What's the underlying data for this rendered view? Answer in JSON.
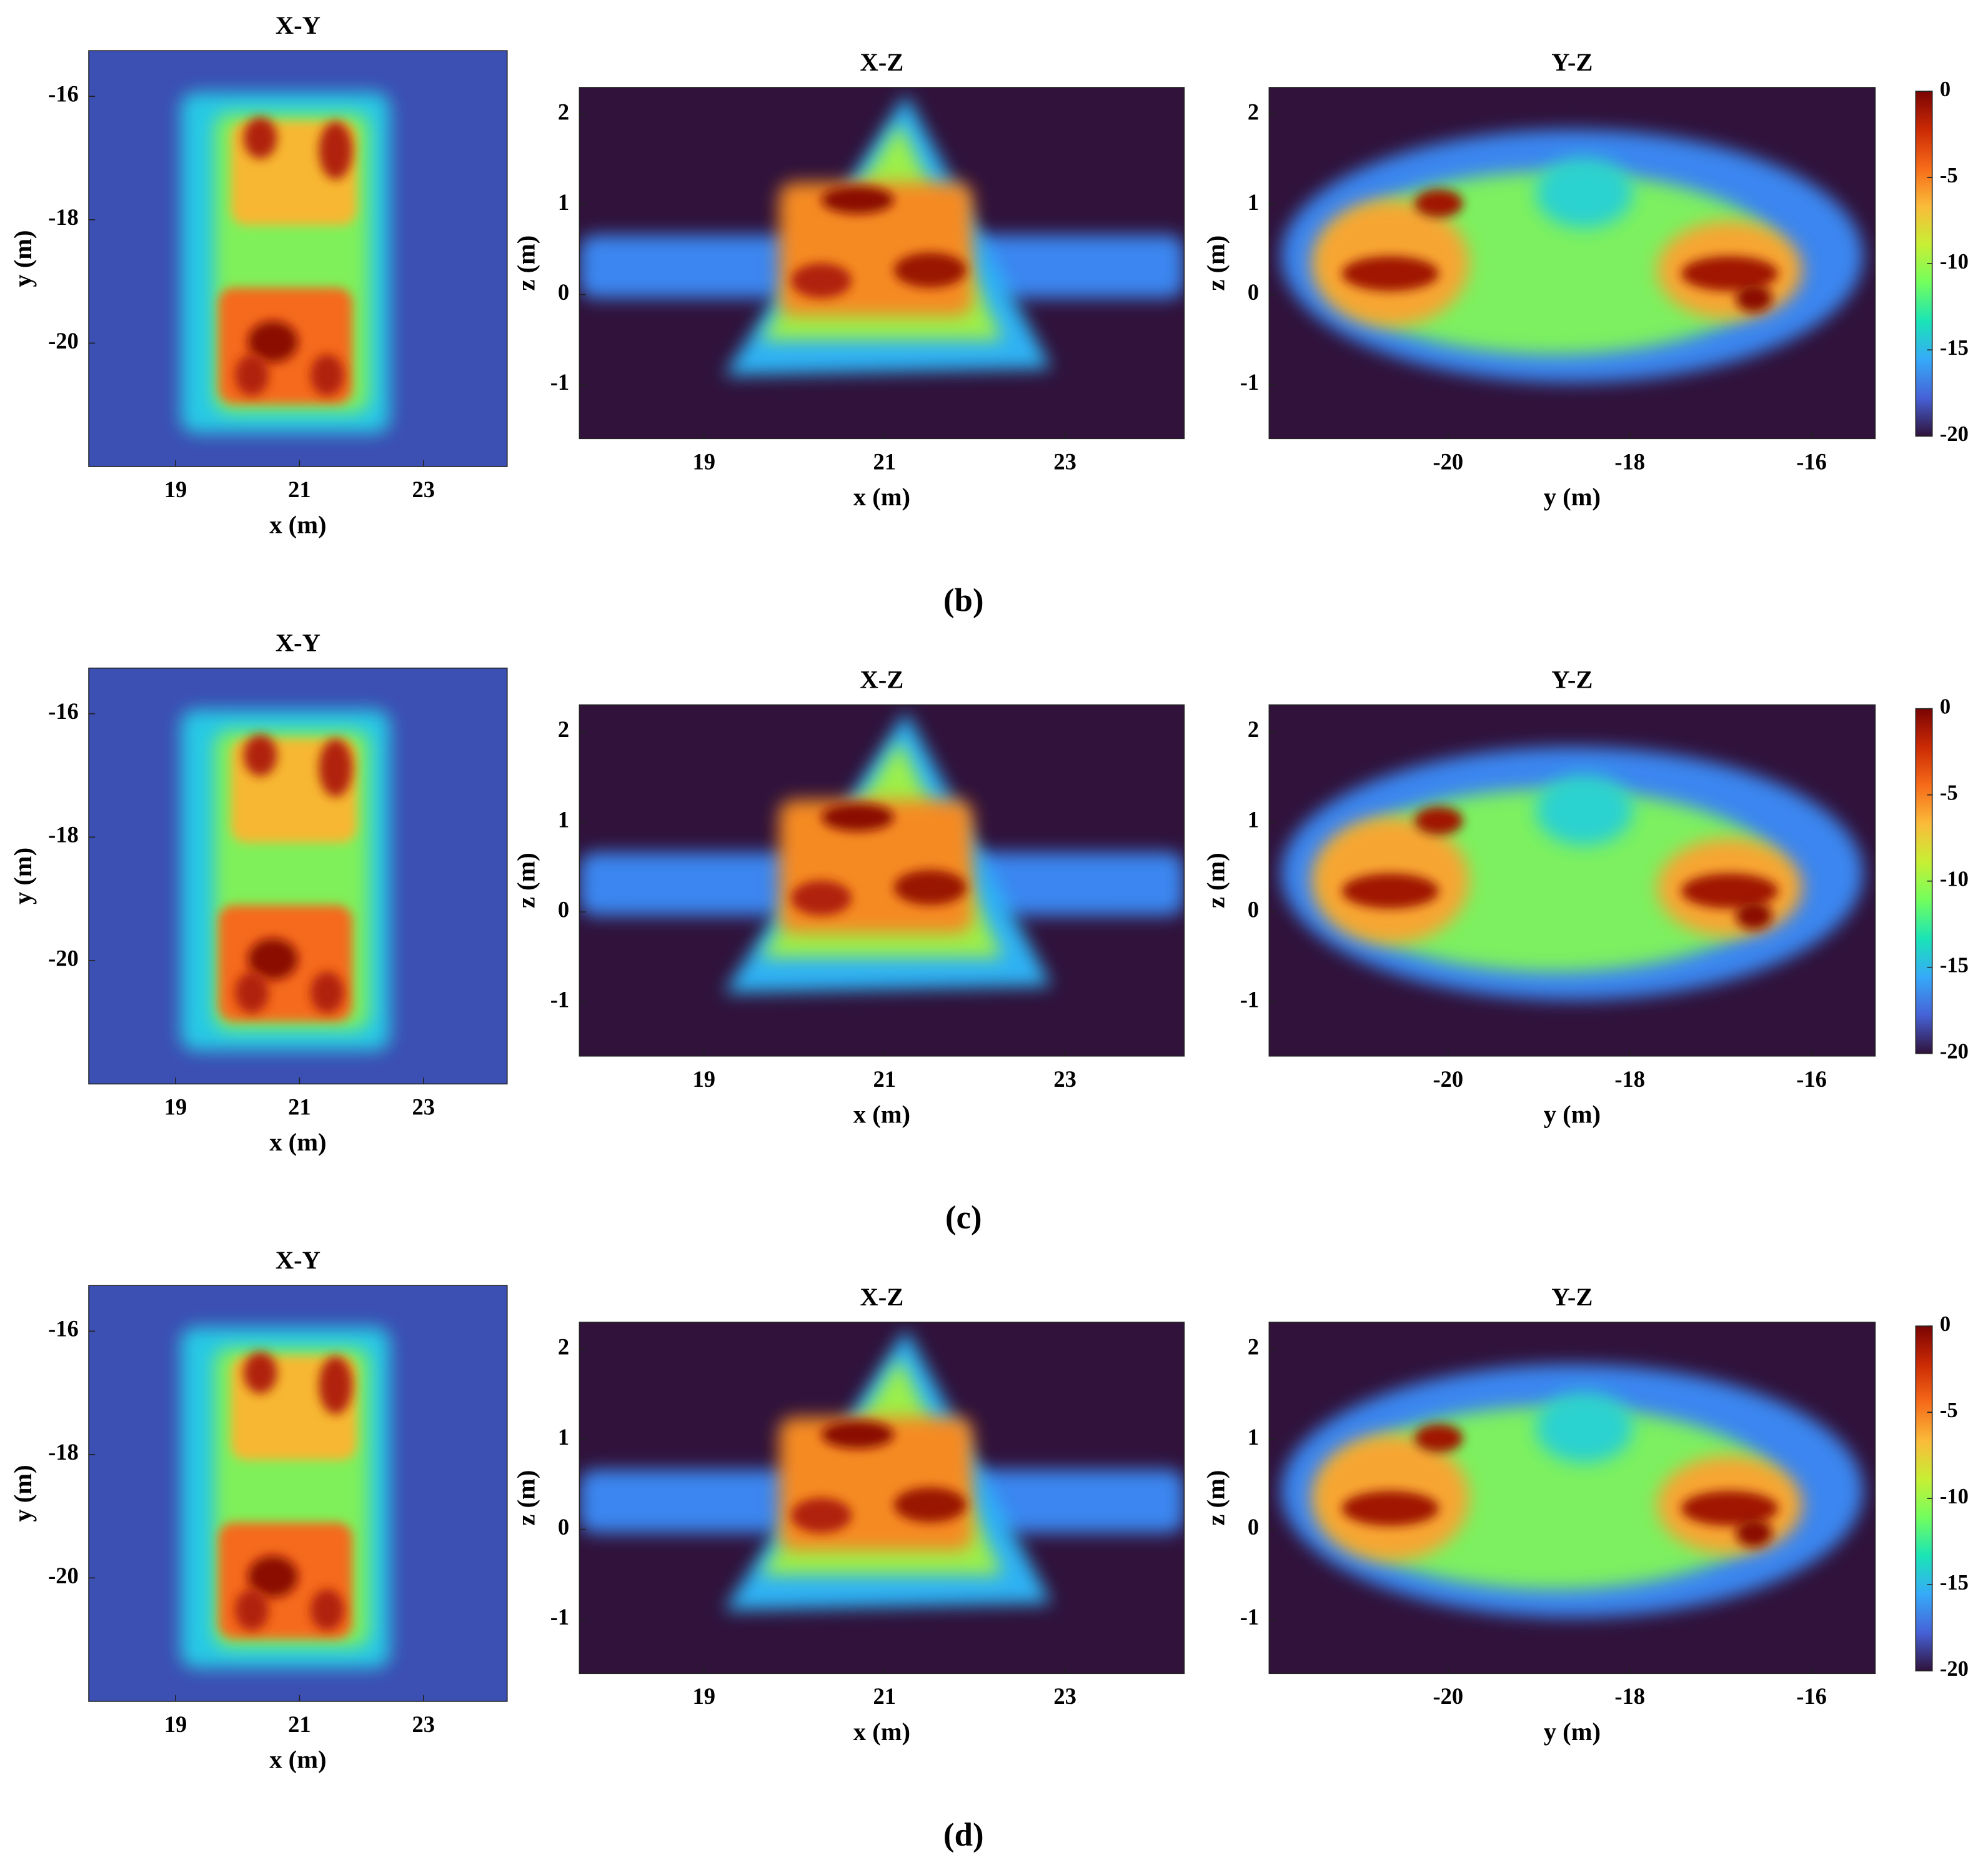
{
  "chart_data": [
    {
      "type": "heatmap",
      "title": "X-Y",
      "x_label": "x (m)",
      "y_label": "y (m)",
      "xlim": [
        17.6,
        24.35
      ],
      "ylim": [
        -22,
        -15.26
      ],
      "xticks": [
        19,
        21,
        23
      ],
      "yticks": [
        -16,
        -18,
        -20
      ]
    },
    {
      "type": "heatmap",
      "title": "X-Z",
      "x_label": "x (m)",
      "y_label": "z (m)",
      "xlim": [
        17.62,
        24.32
      ],
      "ylim": [
        -1.6,
        2.3
      ],
      "xticks": [
        19,
        21,
        23
      ],
      "yticks": [
        2,
        1,
        0,
        -1
      ]
    },
    {
      "type": "heatmap",
      "title": "Y-Z",
      "x_label": "y (m)",
      "y_label": "z (m)",
      "xlim": [
        -21.97,
        -15.3
      ],
      "ylim": [
        -1.6,
        2.3
      ],
      "xticks": [
        -20,
        -18,
        -16
      ],
      "yticks": [
        2,
        1,
        0,
        -1
      ]
    },
    {
      "type": "colorbar",
      "clim": [
        -20,
        0
      ],
      "cticks": [
        0,
        -5,
        -10,
        -15,
        -20
      ],
      "colors": [
        "#30123b",
        "#4662d7",
        "#36aaf9",
        "#1ae4b6",
        "#72fe5e",
        "#c7ef34",
        "#fabb3a",
        "#f66b19",
        "#cb2a04",
        "#7a0403"
      ]
    },
    {
      "type": "heatmap",
      "title": "X-Y",
      "x_label": "x (m)",
      "y_label": "y (m)",
      "xlim": [
        17.6,
        24.35
      ],
      "ylim": [
        -22,
        -15.26
      ],
      "xticks": [
        19,
        21,
        23
      ],
      "yticks": [
        -16,
        -18,
        -20
      ]
    },
    {
      "type": "heatmap",
      "title": "X-Z",
      "x_label": "x (m)",
      "y_label": "z (m)",
      "xlim": [
        17.62,
        24.32
      ],
      "ylim": [
        -1.6,
        2.3
      ],
      "xticks": [
        19,
        21,
        23
      ],
      "yticks": [
        2,
        1,
        0,
        -1
      ]
    },
    {
      "type": "heatmap",
      "title": "Y-Z",
      "x_label": "y (m)",
      "y_label": "z (m)",
      "xlim": [
        -21.97,
        -15.3
      ],
      "ylim": [
        -1.6,
        2.3
      ],
      "xticks": [
        -20,
        -18,
        -16
      ],
      "yticks": [
        2,
        1,
        0,
        -1
      ]
    },
    {
      "type": "colorbar",
      "clim": [
        -20,
        0
      ],
      "cticks": [
        0,
        -5,
        -10,
        -15,
        -20
      ],
      "colors": [
        "#30123b",
        "#4662d7",
        "#36aaf9",
        "#1ae4b6",
        "#72fe5e",
        "#c7ef34",
        "#fabb3a",
        "#f66b19",
        "#cb2a04",
        "#7a0403"
      ]
    },
    {
      "type": "heatmap",
      "title": "X-Y",
      "x_label": "x (m)",
      "y_label": "y (m)",
      "xlim": [
        17.6,
        24.35
      ],
      "ylim": [
        -22,
        -15.26
      ],
      "xticks": [
        19,
        21,
        23
      ],
      "yticks": [
        -16,
        -18,
        -20
      ]
    },
    {
      "type": "heatmap",
      "title": "X-Z",
      "x_label": "x (m)",
      "y_label": "z (m)",
      "xlim": [
        17.62,
        24.32
      ],
      "ylim": [
        -1.6,
        2.3
      ],
      "xticks": [
        19,
        21,
        23
      ],
      "yticks": [
        2,
        1,
        0,
        -1
      ]
    },
    {
      "type": "heatmap",
      "title": "Y-Z",
      "x_label": "y (m)",
      "y_label": "z (m)",
      "xlim": [
        -21.97,
        -15.3
      ],
      "ylim": [
        -1.6,
        2.3
      ],
      "xticks": [
        -20,
        -18,
        -16
      ],
      "yticks": [
        2,
        1,
        0,
        -1
      ]
    },
    {
      "type": "colorbar",
      "clim": [
        -20,
        0
      ],
      "cticks": [
        0,
        -5,
        -10,
        -15,
        -20
      ],
      "colors": [
        "#30123b",
        "#4662d7",
        "#36aaf9",
        "#1ae4b6",
        "#72fe5e",
        "#c7ef34",
        "#fabb3a",
        "#f66b19",
        "#cb2a04",
        "#7a0403"
      ]
    }
  ],
  "captions": [
    "(b)",
    "(c)",
    "(d)"
  ]
}
